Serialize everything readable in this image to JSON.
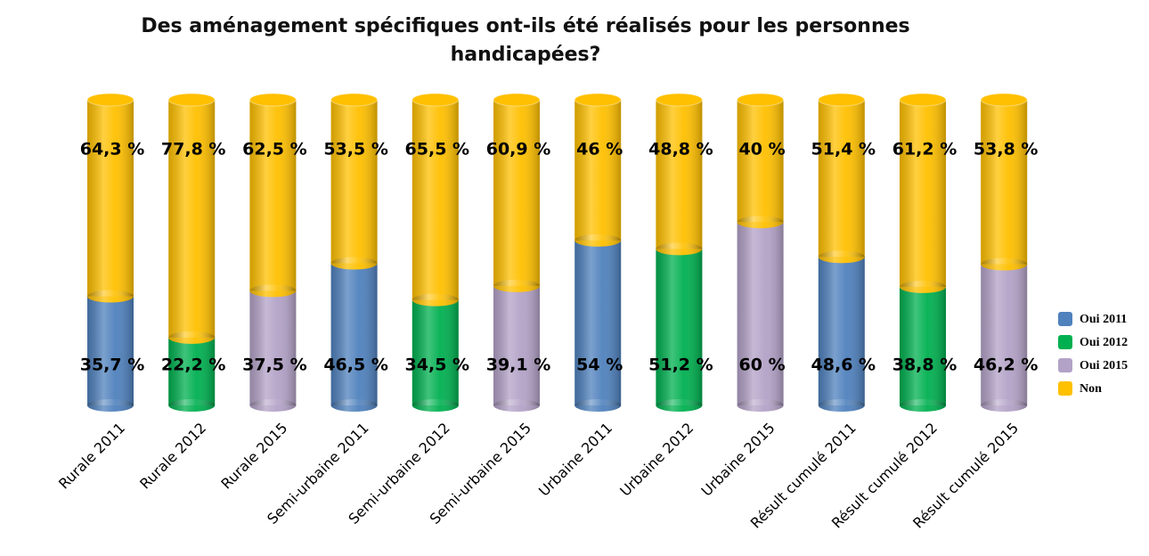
{
  "chart_data": {
    "type": "bar",
    "title": "Des aménagement spécifiques ont-ils été réalisés pour les personnes handicapées?",
    "stacked": true,
    "categories": [
      "Rurale 2011",
      "Rurale 2012",
      "Rurale 2015",
      "Semi-urbaine 2011",
      "Semi-urbaine 2012",
      "Semi-urbaine 2015",
      "Urbaine 2011",
      "Urbaine 2012",
      "Urbaine 2015",
      "Résult cumulé 2011",
      "Résult cumulé 2012",
      "Résult cumulé 2015"
    ],
    "series": [
      {
        "name": "Oui 2011",
        "color": "#4f81bd",
        "values": [
          35.7,
          null,
          null,
          46.5,
          null,
          null,
          54,
          null,
          null,
          48.6,
          null,
          null
        ],
        "value_labels": [
          "35,7 %",
          null,
          null,
          "46,5 %",
          null,
          null,
          "54 %",
          null,
          null,
          "48,6 %",
          null,
          null
        ]
      },
      {
        "name": "Oui 2012",
        "color": "#00b050",
        "values": [
          null,
          22.2,
          null,
          null,
          34.5,
          null,
          null,
          51.2,
          null,
          null,
          38.8,
          null
        ],
        "value_labels": [
          null,
          "22,2 %",
          null,
          null,
          "34,5 %",
          null,
          null,
          "51,2 %",
          null,
          null,
          "38,8 %",
          null
        ]
      },
      {
        "name": "Oui 2015",
        "color": "#b3a2c7",
        "values": [
          null,
          null,
          37.5,
          null,
          null,
          39.1,
          null,
          null,
          60,
          null,
          null,
          46.2
        ],
        "value_labels": [
          null,
          null,
          "37,5 %",
          null,
          null,
          "39,1 %",
          null,
          null,
          "60 %",
          null,
          null,
          "46,2 %"
        ]
      },
      {
        "name": "Non",
        "color": "#ffc000",
        "values": [
          64.3,
          77.8,
          62.5,
          53.5,
          65.5,
          60.9,
          46,
          48.8,
          40,
          51.4,
          61.2,
          53.8
        ],
        "value_labels": [
          "64,3 %",
          "77,8 %",
          "62,5 %",
          "53,5 %",
          "65,5 %",
          "60,9 %",
          "46 %",
          "48,8 %",
          "40 %",
          "51,4 %",
          "61,2 %",
          "53,8 %"
        ]
      }
    ],
    "legend": "right"
  }
}
